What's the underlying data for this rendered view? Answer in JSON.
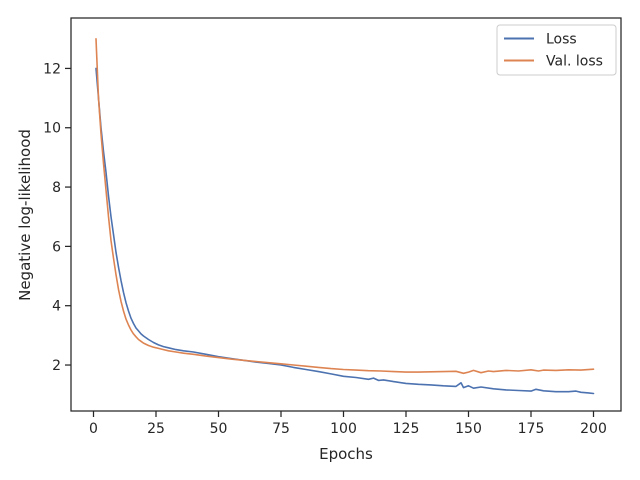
{
  "chart_data": {
    "type": "line",
    "title": "",
    "xlabel": "Epochs",
    "ylabel": "Negative log-likelihood",
    "xlim": [
      -9,
      211
    ],
    "ylim": [
      0.45,
      13.7
    ],
    "xticks": [
      0,
      25,
      50,
      75,
      100,
      125,
      150,
      175,
      200
    ],
    "yticks": [
      2,
      4,
      6,
      8,
      10,
      12
    ],
    "grid": false,
    "legend_position": "top-right",
    "series": [
      {
        "name": "Loss",
        "color": "#4c72b0",
        "x": [
          1,
          2,
          3,
          4,
          5,
          6,
          7,
          8,
          9,
          10,
          11,
          12,
          13,
          14,
          15,
          16,
          17,
          18,
          19,
          20,
          22,
          24,
          26,
          28,
          30,
          33,
          36,
          40,
          45,
          50,
          55,
          60,
          65,
          70,
          75,
          80,
          85,
          90,
          95,
          100,
          105,
          110,
          112,
          114,
          116,
          120,
          125,
          130,
          135,
          140,
          145,
          147,
          148,
          150,
          152,
          155,
          160,
          165,
          170,
          175,
          177,
          180,
          185,
          190,
          193,
          195,
          198,
          200
        ],
        "y": [
          12.0,
          11.0,
          10.0,
          9.2,
          8.5,
          7.7,
          7.0,
          6.4,
          5.8,
          5.3,
          4.85,
          4.45,
          4.1,
          3.82,
          3.58,
          3.4,
          3.25,
          3.15,
          3.05,
          2.98,
          2.86,
          2.76,
          2.68,
          2.62,
          2.58,
          2.52,
          2.48,
          2.44,
          2.36,
          2.28,
          2.22,
          2.16,
          2.1,
          2.05,
          2.0,
          1.92,
          1.85,
          1.78,
          1.7,
          1.62,
          1.58,
          1.52,
          1.56,
          1.48,
          1.5,
          1.44,
          1.38,
          1.35,
          1.33,
          1.3,
          1.28,
          1.4,
          1.24,
          1.3,
          1.22,
          1.26,
          1.2,
          1.16,
          1.14,
          1.12,
          1.18,
          1.13,
          1.1,
          1.1,
          1.12,
          1.08,
          1.06,
          1.04
        ]
      },
      {
        "name": "Val. loss",
        "color": "#dd8452",
        "x": [
          1,
          2,
          3,
          4,
          5,
          6,
          7,
          8,
          9,
          10,
          11,
          12,
          13,
          14,
          15,
          16,
          17,
          18,
          19,
          20,
          22,
          24,
          26,
          28,
          30,
          33,
          36,
          40,
          45,
          50,
          55,
          60,
          65,
          70,
          75,
          80,
          85,
          90,
          95,
          100,
          105,
          110,
          115,
          120,
          125,
          130,
          135,
          140,
          145,
          148,
          150,
          152,
          155,
          158,
          160,
          165,
          170,
          175,
          178,
          180,
          185,
          190,
          195,
          200
        ],
        "y": [
          13.0,
          11.0,
          9.8,
          8.8,
          7.9,
          7.0,
          6.2,
          5.6,
          5.05,
          4.55,
          4.15,
          3.82,
          3.55,
          3.35,
          3.18,
          3.05,
          2.95,
          2.86,
          2.8,
          2.74,
          2.66,
          2.6,
          2.56,
          2.52,
          2.48,
          2.44,
          2.4,
          2.36,
          2.3,
          2.25,
          2.2,
          2.16,
          2.12,
          2.08,
          2.04,
          2.0,
          1.96,
          1.92,
          1.88,
          1.85,
          1.83,
          1.81,
          1.8,
          1.78,
          1.76,
          1.76,
          1.77,
          1.78,
          1.79,
          1.72,
          1.76,
          1.82,
          1.74,
          1.8,
          1.78,
          1.82,
          1.8,
          1.84,
          1.8,
          1.83,
          1.82,
          1.84,
          1.83,
          1.86
        ]
      }
    ]
  }
}
